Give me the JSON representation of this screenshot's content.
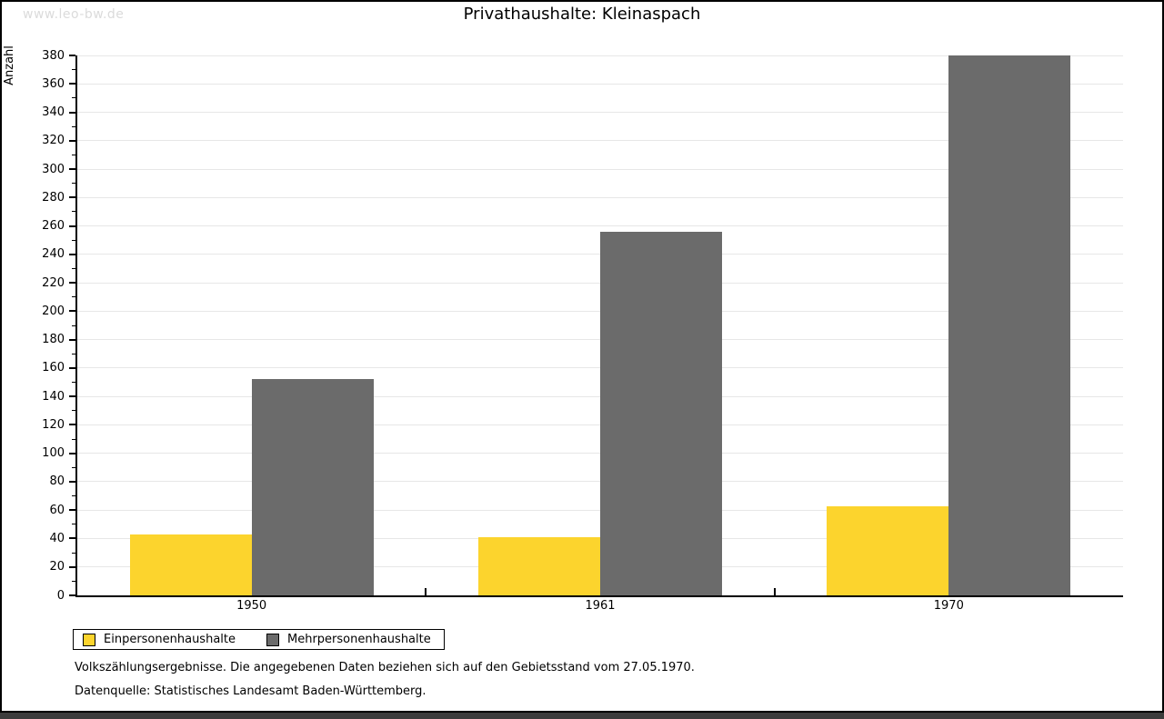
{
  "watermark": "www.leo-bw.de",
  "title": "Privathaushalte: Kleinaspach",
  "chart_data": {
    "type": "bar",
    "title": "Privathaushalte: Kleinaspach",
    "ylabel": "Anzahl",
    "xlabel": "",
    "categories": [
      "1950",
      "1961",
      "1970"
    ],
    "series": [
      {
        "name": "Einpersonenhaushalte",
        "color": "#FCD42D",
        "values": [
          43,
          41,
          63
        ]
      },
      {
        "name": "Mehrpersonenhaushalte",
        "color": "#6B6B6B",
        "values": [
          152,
          256,
          380
        ]
      }
    ],
    "ylim": [
      0,
      380
    ],
    "ytick_step": 20,
    "minor_tick_step": 10,
    "grid": true,
    "gridline_color": "#E7E7E7",
    "legend_position": "bottom-left"
  },
  "footnotes": [
    "Volkszählungsergebnisse. Die angegebenen Daten beziehen sich auf den Gebietsstand vom 27.05.1970.",
    "Datenquelle: Statistisches Landesamt Baden-Württemberg."
  ]
}
